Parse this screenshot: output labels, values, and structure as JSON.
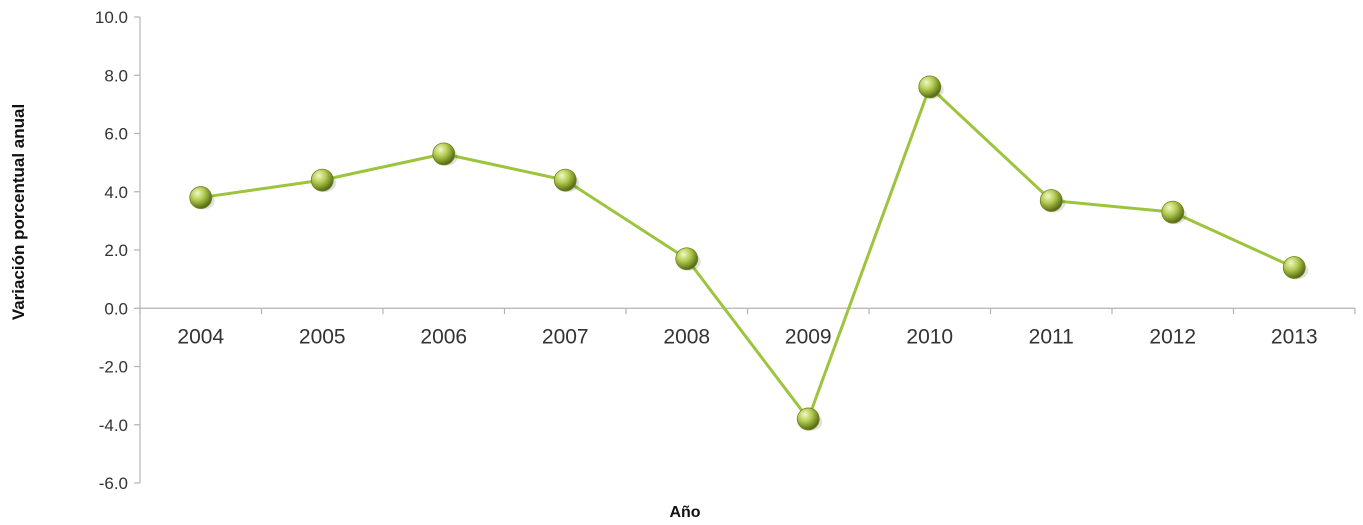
{
  "chart_data": {
    "type": "line",
    "title": "",
    "xlabel": "Año",
    "ylabel": "Variación porcentual anual",
    "categories": [
      "2004",
      "2005",
      "2006",
      "2007",
      "2008",
      "2009",
      "2010",
      "2011",
      "2012",
      "2013"
    ],
    "series": [
      {
        "values": [
          3.8,
          4.4,
          5.3,
          4.4,
          1.7,
          -3.8,
          7.6,
          3.7,
          3.3,
          1.4
        ]
      }
    ],
    "ylim": [
      -6.0,
      10.0
    ],
    "yticks": [
      "10.0",
      "8.0",
      "6.0",
      "4.0",
      "2.0",
      "0.0",
      "-2.0",
      "-4.0",
      "-6.0"
    ],
    "grid": false,
    "legend": "none",
    "colors": {
      "line": "#9cc43d",
      "marker": "#a4c23f",
      "axis": "#b3b3b3"
    }
  }
}
